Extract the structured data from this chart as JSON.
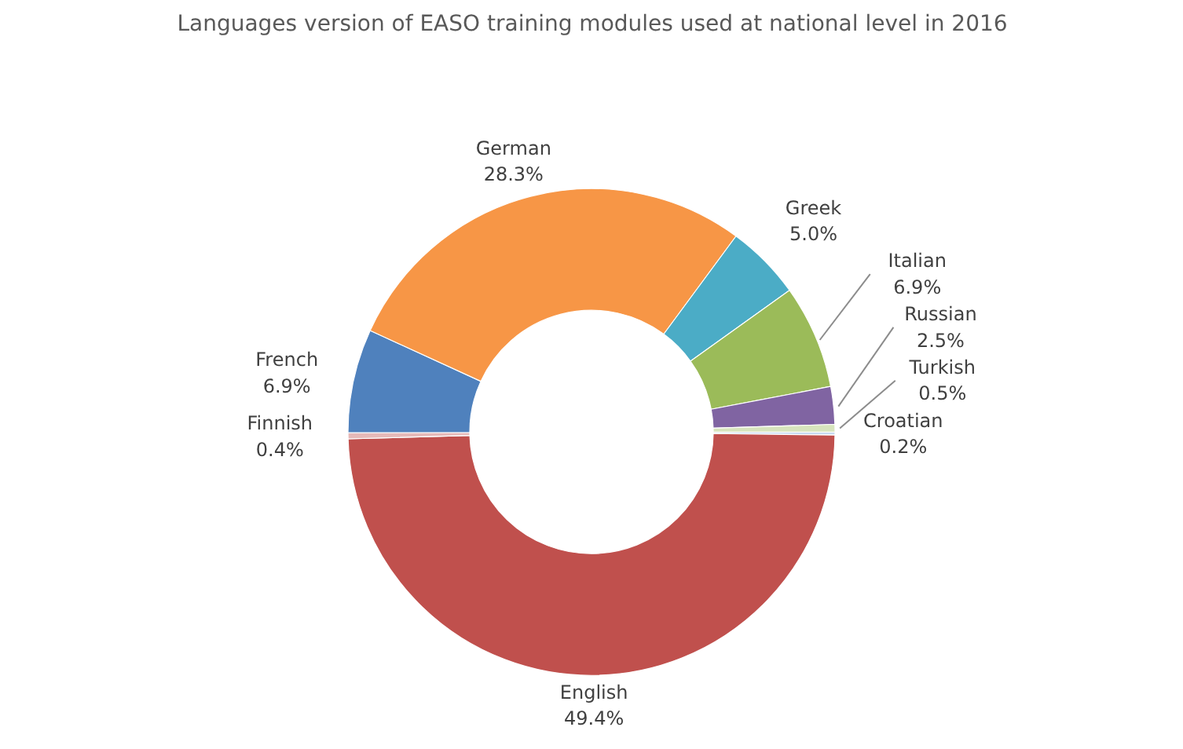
{
  "chart_data": {
    "type": "donut",
    "title": "Languages version of EASO training modules used at national level in 2016",
    "categories": [
      "Croatian",
      "English",
      "Finnish",
      "French",
      "German",
      "Greek",
      "Italian",
      "Russian",
      "Turkish"
    ],
    "values": [
      0.2,
      49.4,
      0.4,
      6.9,
      28.3,
      5.0,
      6.9,
      2.5,
      0.5
    ],
    "value_labels": [
      "0.2%",
      "49.4%",
      "0.4%",
      "6.9%",
      "28.3%",
      "5.0%",
      "6.9%",
      "2.5%",
      "0.5%"
    ],
    "colors": [
      "#c6d9f1",
      "#c0504d",
      "#e6b9b8",
      "#4f81bd",
      "#f79646",
      "#4bacc6",
      "#9bbb59",
      "#8064a2",
      "#d7e4bd"
    ]
  }
}
